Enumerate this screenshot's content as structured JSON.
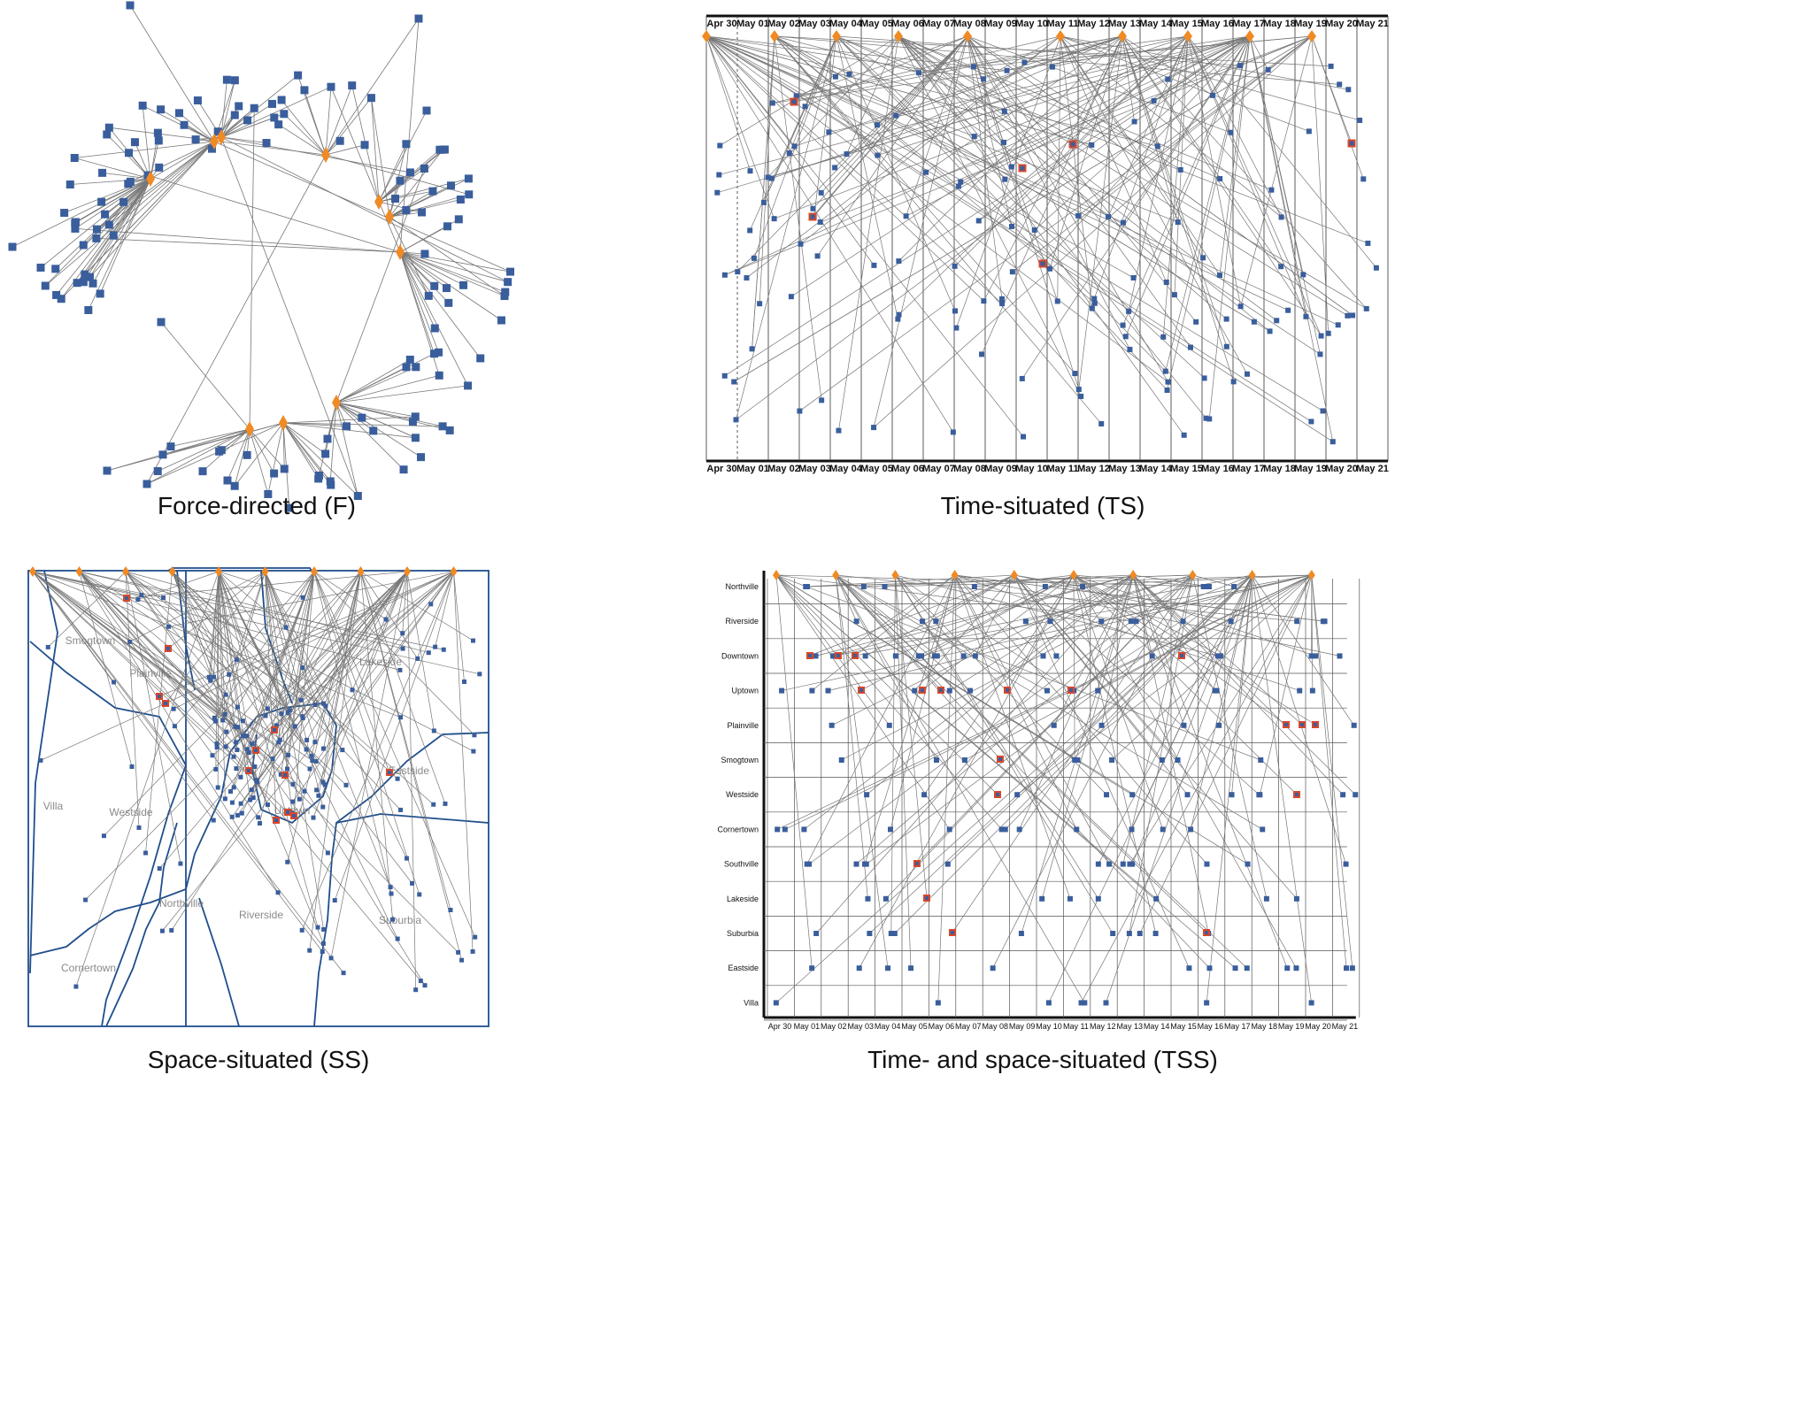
{
  "captions": {
    "f": "Force-directed (F)",
    "ts": "Time-situated (TS)",
    "ss": "Space-situated (SS)",
    "tss": "Time- and space-situated (TSS)"
  },
  "colors": {
    "node": "#3a5e9c",
    "event": "#f08a24",
    "highlight": "#d9472b",
    "edge": "#777777",
    "boundary": "#1f4e8c"
  },
  "icons": {
    "node": "blue-square-node",
    "event": "orange-diamond-node",
    "highlight": "red-outlined-square-node"
  },
  "ts_dates": [
    "Apr 30",
    "May 01",
    "May 02",
    "May 03",
    "May 04",
    "May 05",
    "May 06",
    "May 07",
    "May 08",
    "May 09",
    "May 10",
    "May 11",
    "May 12",
    "May 13",
    "May 14",
    "May 15",
    "May 16",
    "May 17",
    "May 18",
    "May 19",
    "May 20",
    "May 21"
  ],
  "tss_dates": [
    "Apr 30",
    "May 01",
    "May 02",
    "May 03",
    "May 04",
    "May 05",
    "May 06",
    "May 07",
    "May 08",
    "May 09",
    "May 10",
    "May 11",
    "May 12",
    "May 13",
    "May 14",
    "May 15",
    "May 16",
    "May 17",
    "May 18",
    "May 19",
    "May 20",
    "May 21"
  ],
  "tss_rows": [
    "Northville",
    "Riverside",
    "Downtown",
    "Uptown",
    "Plainville",
    "Smogtown",
    "Westside",
    "Cornertown",
    "Southville",
    "Lakeside",
    "Suburbia",
    "Eastside",
    "Villa"
  ],
  "ss_regions": [
    "Smogtown",
    "Plainville",
    "Lakeside",
    "Eastside",
    "Villa",
    "Westside",
    "Uptown",
    "Northville",
    "Riverside",
    "Suburbia",
    "Cornertown"
  ]
}
